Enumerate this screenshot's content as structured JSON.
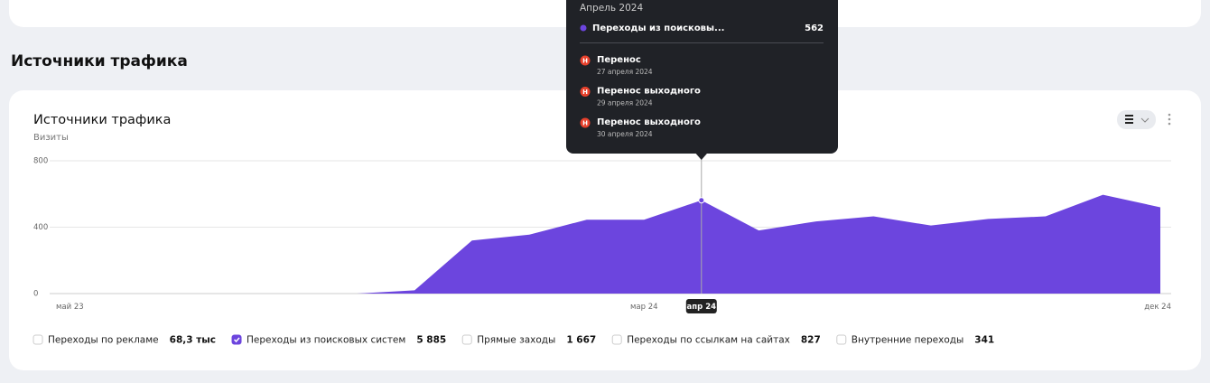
{
  "section_title": "Источники трафика",
  "chart_data": {
    "type": "area",
    "title": "Источники трафика",
    "subtitle": "Визиты",
    "categories": [
      "май 23",
      null,
      null,
      null,
      null,
      null,
      null,
      null,
      null,
      null,
      "мар 24",
      "апр 24",
      null,
      null,
      null,
      null,
      null,
      null,
      null,
      "дек 24"
    ],
    "series": [
      {
        "name": "Переходы из поисковых систем",
        "color": "#6c45de",
        "values": [
          0,
          0,
          0,
          0,
          0,
          0,
          20,
          320,
          355,
          445,
          445,
          562,
          380,
          435,
          465,
          410,
          450,
          465,
          595,
          520
        ]
      }
    ],
    "ylim": [
      0,
      800
    ],
    "yticks": [
      0,
      400,
      800
    ],
    "grid": true,
    "legend_items": [
      {
        "name": "Переходы по рекламе",
        "total": "68,3 тыс",
        "checked": false
      },
      {
        "name": "Переходы из поисковых систем",
        "total": "5 885",
        "checked": true
      },
      {
        "name": "Прямые заходы",
        "total": "1 667",
        "checked": false
      },
      {
        "name": "Переходы по ссылкам на сайтах",
        "total": "827",
        "checked": false
      },
      {
        "name": "Внутренние переходы",
        "total": "341",
        "checked": false
      }
    ],
    "tooltip": {
      "category_index": 11,
      "title": "Апрель 2024",
      "events": [
        {
          "title": "Перенос",
          "date": "27 апреля 2024"
        },
        {
          "title": "Перенос выходного",
          "date": "29 апреля 2024"
        },
        {
          "title": "Перенос выходного",
          "date": "30 апреля 2024"
        }
      ]
    }
  }
}
